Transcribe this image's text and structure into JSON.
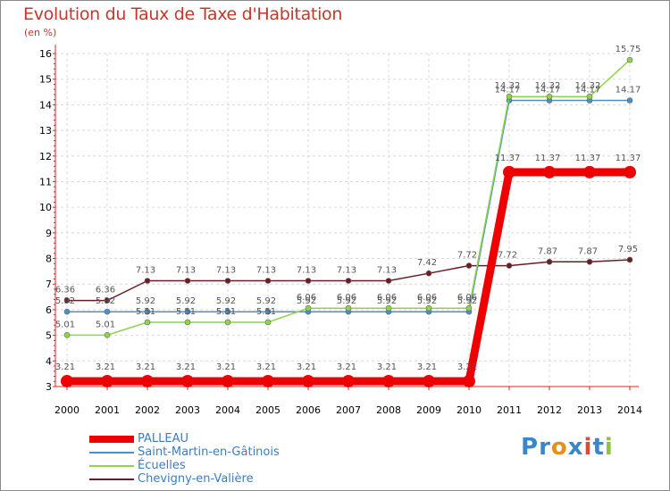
{
  "title": "Evolution du Taux de Taxe d'Habitation",
  "unit_label": "(en %)",
  "logo": {
    "letters": [
      "P",
      "r",
      "o",
      "x",
      "i",
      "t",
      "i"
    ],
    "colors": [
      "#3b86c9",
      "#3b86c9",
      "#e58f1f",
      "#3b86c9",
      "#d64b3a",
      "#3b86c9",
      "#8cc43f"
    ]
  },
  "chart_data": {
    "type": "line",
    "title": "Evolution du Taux de Taxe d'Habitation",
    "ylabel": "(en %)",
    "xlabel": "",
    "ylim": [
      3,
      16
    ],
    "yticks": [
      "3",
      "4",
      "5",
      "6",
      "7",
      "8",
      "9",
      "10",
      "11",
      "12",
      "13",
      "14",
      "15",
      "16"
    ],
    "x": [
      "2000",
      "2001",
      "2002",
      "2003",
      "2004",
      "2005",
      "2006",
      "2007",
      "2008",
      "2009",
      "2010",
      "2011",
      "2012",
      "2013",
      "2014"
    ],
    "series": [
      {
        "name": "PALLEAU",
        "color": "#ee0000",
        "values": [
          3.21,
          3.21,
          3.21,
          3.21,
          3.21,
          3.21,
          3.21,
          3.21,
          3.21,
          3.21,
          3.21,
          11.37,
          11.37,
          11.37,
          11.37
        ],
        "labels": [
          "3.21",
          "3.21",
          "3.21",
          "3.21",
          "3.21",
          "3.21",
          "3.21",
          "3.21",
          "3.21",
          "3.21",
          "3.21",
          "11.37",
          "11.37",
          "11.37",
          "11.37"
        ]
      },
      {
        "name": "Saint-Martin-en-Gâtinois",
        "color": "#4a90c8",
        "values": [
          5.92,
          5.92,
          5.92,
          5.92,
          5.92,
          5.92,
          5.92,
          5.92,
          5.92,
          5.92,
          5.92,
          14.17,
          14.17,
          14.17,
          14.17
        ],
        "labels": [
          "5.92",
          "5.92",
          "5.92",
          "5.92",
          "5.92",
          "5.92",
          "5.92",
          "5.92",
          "5.92",
          "5.92",
          "5.92",
          "14.17",
          "14.17",
          "14.17",
          "14.17"
        ]
      },
      {
        "name": "Écuelles",
        "color": "#8fd44a",
        "values": [
          5.01,
          5.01,
          5.51,
          5.51,
          5.51,
          5.51,
          6.06,
          6.06,
          6.06,
          6.06,
          6.06,
          14.32,
          14.32,
          14.32,
          15.75
        ],
        "labels": [
          "5.01",
          "5.01",
          "5.51",
          "5.51",
          "5.51",
          "5.51",
          "6.06",
          "6.06",
          "6.06",
          "6.06",
          "6.06",
          "14.32",
          "14.32",
          "14.32",
          "15.75"
        ]
      },
      {
        "name": "Chevigny-en-Valière",
        "color": "#6b1c24",
        "values": [
          6.36,
          6.36,
          7.13,
          7.13,
          7.13,
          7.13,
          7.13,
          7.13,
          7.13,
          7.42,
          7.72,
          7.72,
          7.87,
          7.87,
          7.95
        ],
        "labels": [
          "6.36",
          "6.36",
          "7.13",
          "7.13",
          "7.13",
          "7.13",
          "7.13",
          "7.13",
          "7.13",
          "7.42",
          "7.72",
          "7.72",
          "7.87",
          "7.87",
          "7.95"
        ]
      }
    ],
    "legend_position": "bottom-left"
  }
}
